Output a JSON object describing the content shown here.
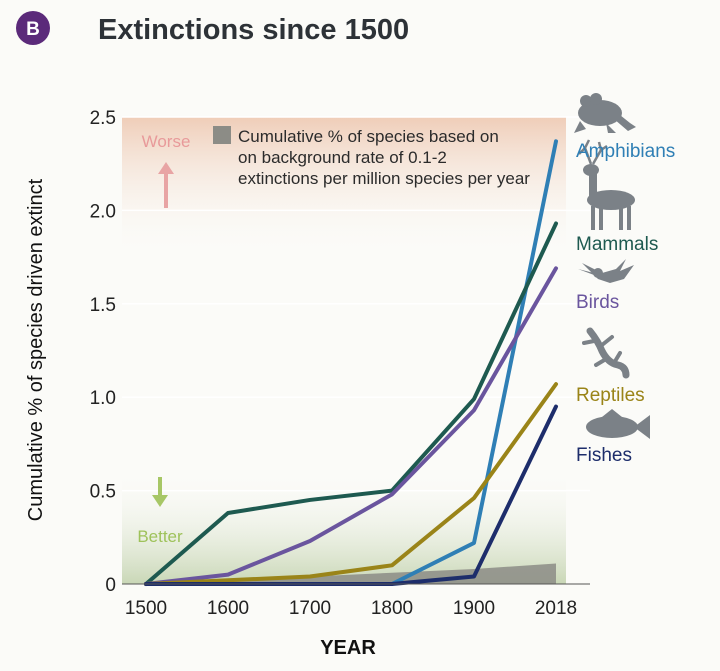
{
  "badge": "B",
  "chart_data": {
    "type": "line",
    "title": "Extinctions since 1500",
    "xlabel": "YEAR",
    "ylabel": "Cumulative % of species driven extinct",
    "x": [
      1500,
      1600,
      1700,
      1800,
      1900,
      2018
    ],
    "x_tick_labels": [
      "1500",
      "1600",
      "1700",
      "1800",
      "1900",
      "2018"
    ],
    "y_tick_labels": [
      "0",
      "0.5",
      "1.0",
      "1.5",
      "2.0",
      "2.5"
    ],
    "y_ticks": [
      0,
      0.5,
      1.0,
      1.5,
      2.0,
      2.5
    ],
    "ylim": [
      0,
      2.5
    ],
    "grid": true,
    "series": [
      {
        "name": "Amphibians",
        "color": "#2f7fb5",
        "icon": "frog-icon",
        "values": [
          0,
          0,
          0,
          0,
          0.22,
          2.37
        ]
      },
      {
        "name": "Mammals",
        "color": "#1e5a50",
        "icon": "deer-icon",
        "values": [
          0,
          0.38,
          0.45,
          0.5,
          0.99,
          1.93
        ]
      },
      {
        "name": "Birds",
        "color": "#6a559e",
        "icon": "bird-icon",
        "values": [
          0,
          0.05,
          0.23,
          0.48,
          0.93,
          1.69
        ]
      },
      {
        "name": "Reptiles",
        "color": "#9a8418",
        "icon": "lizard-icon",
        "values": [
          0,
          0.02,
          0.04,
          0.1,
          0.46,
          1.07
        ]
      },
      {
        "name": "Fishes",
        "color": "#1d2d6b",
        "icon": "fish-icon",
        "values": [
          0,
          0,
          0,
          0,
          0.04,
          0.95
        ]
      }
    ],
    "background_rate": {
      "label": "Cumulative % of species based on on background rate of 0.1-2 extinctions per million species per year",
      "label_lines": [
        "Cumulative % of species based on",
        "on background rate of 0.1-2",
        "extinctions per million species per year"
      ],
      "color": "#8c8c86",
      "upper": [
        0,
        0.02,
        0.04,
        0.06,
        0.08,
        0.11
      ]
    },
    "annotations": {
      "worse": {
        "label": "Worse",
        "color": "#e89a9a"
      },
      "better": {
        "label": "Better",
        "color": "#9ec25a"
      }
    },
    "legend_position": "top-left"
  }
}
